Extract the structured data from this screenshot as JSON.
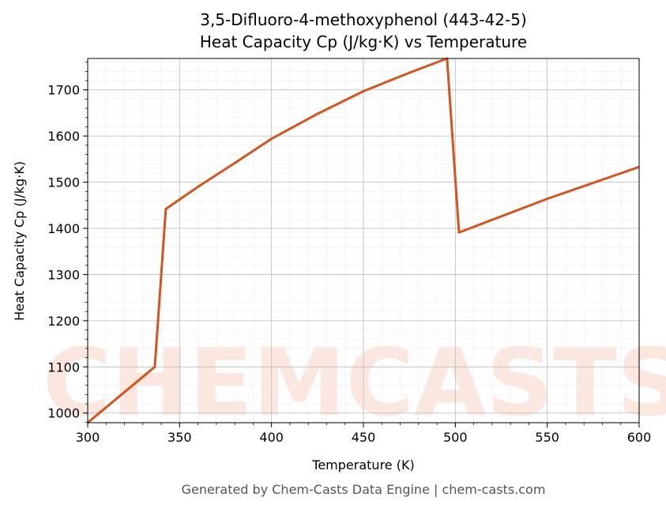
{
  "chart_data": {
    "type": "line",
    "title": "3,5-Difluoro-4-methoxyphenol (443-42-5)",
    "subtitle": "Heat Capacity Cp (J/kg·K) vs Temperature",
    "x_label": "Temperature (K)",
    "y_label": "Heat Capacity Cp (J/kg·K)",
    "watermark": "CHEMCASTS",
    "footer": "Generated by Chem-Casts Data Engine | chem-casts.com",
    "x": [
      300,
      336.5,
      342.5,
      360,
      381,
      400,
      425,
      450,
      475,
      495.5,
      502,
      550,
      600
    ],
    "series": [
      {
        "name": "Cp",
        "color": "#d4541f",
        "values": [
          979,
          1100,
          1442,
          1490,
          1544,
          1594,
          1648,
          1697,
          1737,
          1768,
          1391,
          1464,
          1533
        ]
      }
    ],
    "xlim": [
      300,
      600
    ],
    "xticks": [
      300,
      350,
      400,
      450,
      500,
      550,
      600
    ],
    "ylim": [
      979,
      1768
    ],
    "yticks": [
      1000,
      1100,
      1200,
      1300,
      1400,
      1500,
      1600,
      1700
    ],
    "grid": true,
    "minor_grid": true
  }
}
